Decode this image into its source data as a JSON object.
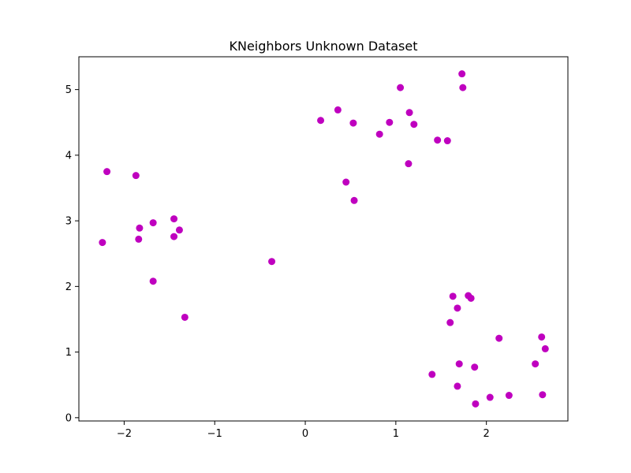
{
  "chart_data": {
    "type": "scatter",
    "title": "KNeighbors Unknown Dataset",
    "xlabel": "",
    "ylabel": "",
    "xlim": [
      -2.5,
      2.9
    ],
    "ylim": [
      -0.05,
      5.5
    ],
    "xticks": [
      -2,
      -1,
      0,
      1,
      2
    ],
    "xtick_labels": [
      "−2",
      "−1",
      "0",
      "1",
      "2"
    ],
    "yticks": [
      0,
      1,
      2,
      3,
      4,
      5
    ],
    "ytick_labels": [
      "0",
      "1",
      "2",
      "3",
      "4",
      "5"
    ],
    "grid": false,
    "marker_color": "#bf00bf",
    "series": [
      {
        "points": [
          [
            -2.24,
            2.67
          ],
          [
            -2.19,
            3.75
          ],
          [
            -1.87,
            3.69
          ],
          [
            -1.83,
            2.89
          ],
          [
            -1.84,
            2.72
          ],
          [
            -1.68,
            2.97
          ],
          [
            -1.68,
            2.08
          ],
          [
            -1.45,
            3.03
          ],
          [
            -1.45,
            2.76
          ],
          [
            -1.39,
            2.86
          ],
          [
            -1.33,
            1.53
          ],
          [
            -0.37,
            2.38
          ],
          [
            0.17,
            4.53
          ],
          [
            0.36,
            4.69
          ],
          [
            0.45,
            3.59
          ],
          [
            0.53,
            4.49
          ],
          [
            0.54,
            3.31
          ],
          [
            0.82,
            4.32
          ],
          [
            0.93,
            4.5
          ],
          [
            1.05,
            5.03
          ],
          [
            1.14,
            3.87
          ],
          [
            1.15,
            4.65
          ],
          [
            1.2,
            4.47
          ],
          [
            1.46,
            4.23
          ],
          [
            1.57,
            4.22
          ],
          [
            1.73,
            5.24
          ],
          [
            1.74,
            5.03
          ],
          [
            1.4,
            0.66
          ],
          [
            1.6,
            1.45
          ],
          [
            1.63,
            1.85
          ],
          [
            1.68,
            1.67
          ],
          [
            1.68,
            0.48
          ],
          [
            1.7,
            0.82
          ],
          [
            1.8,
            1.86
          ],
          [
            1.83,
            1.82
          ],
          [
            1.87,
            0.77
          ],
          [
            1.88,
            0.21
          ],
          [
            2.04,
            0.31
          ],
          [
            2.14,
            1.21
          ],
          [
            2.25,
            0.34
          ],
          [
            2.54,
            0.82
          ],
          [
            2.61,
            1.23
          ],
          [
            2.62,
            0.35
          ],
          [
            2.65,
            1.05
          ]
        ]
      }
    ]
  }
}
